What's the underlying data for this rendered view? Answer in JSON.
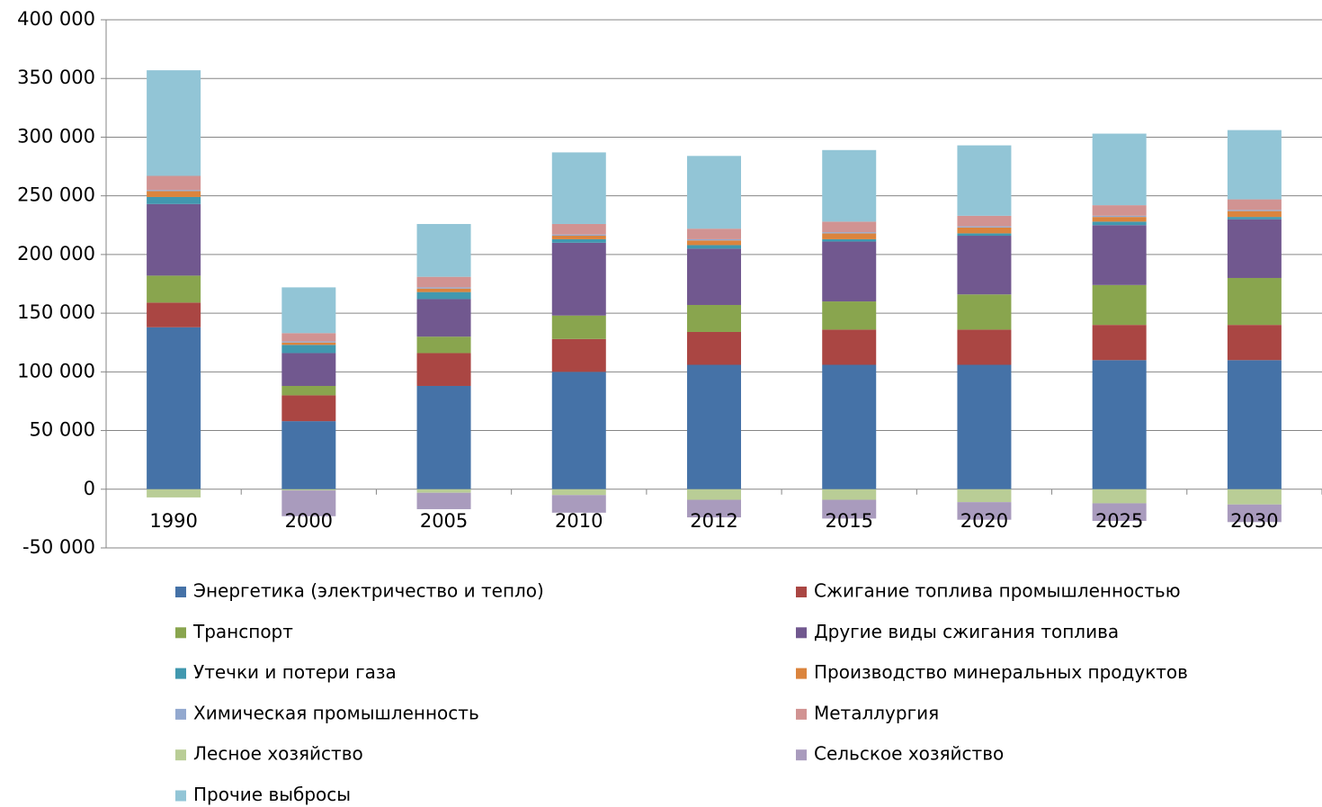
{
  "chart_data": {
    "type": "stacked_bar",
    "categories": [
      "1990",
      "2000",
      "2005",
      "2010",
      "2012",
      "2015",
      "2020",
      "2025",
      "2030"
    ],
    "series": [
      {
        "name": "Энергетика (электричество и тепло)",
        "color": "#4572a7",
        "values": [
          138000,
          58000,
          88000,
          100000,
          106000,
          106000,
          106000,
          110000,
          110000
        ]
      },
      {
        "name": "Сжигание топлива промышленностью",
        "color": "#aa4643",
        "values": [
          21000,
          22000,
          28000,
          28000,
          28000,
          30000,
          30000,
          30000,
          30000
        ]
      },
      {
        "name": "Транспорт",
        "color": "#89a54e",
        "values": [
          23000,
          8000,
          14000,
          20000,
          23000,
          24000,
          30000,
          34000,
          40000
        ]
      },
      {
        "name": "Другие виды сжигания топлива",
        "color": "#71588f",
        "values": [
          61000,
          28000,
          32000,
          62000,
          48000,
          51000,
          50000,
          51000,
          50000
        ]
      },
      {
        "name": "Утечки и потери газа",
        "color": "#4198af",
        "values": [
          6000,
          7000,
          6000,
          3000,
          3000,
          2000,
          2000,
          3000,
          2000
        ]
      },
      {
        "name": "Производство минеральных продуктов",
        "color": "#db843d",
        "values": [
          5000,
          2000,
          3000,
          3000,
          4000,
          5000,
          5000,
          4000,
          5000
        ]
      },
      {
        "name": "Химическая промышленность",
        "color": "#93a9cf",
        "values": [
          1000,
          1000,
          1000,
          1000,
          1000,
          1000,
          1000,
          1000,
          1000
        ]
      },
      {
        "name": "Металлургия",
        "color": "#d19392",
        "values": [
          12000,
          7000,
          9000,
          9000,
          9000,
          9000,
          9000,
          9000,
          9000
        ]
      },
      {
        "name": "Лесное хозяйство",
        "color": "#b9cd96",
        "values": [
          -7000,
          -1000,
          -3000,
          -5000,
          -9000,
          -9000,
          -11000,
          -12000,
          -13000
        ]
      },
      {
        "name": "Сельское хозяйство",
        "color": "#a99bbd",
        "values": [
          0,
          -22000,
          -14000,
          -15000,
          -15000,
          -16000,
          -15000,
          -15000,
          -15000
        ]
      },
      {
        "name": "Прочие выбросы",
        "color": "#92c5d6",
        "values": [
          90000,
          39000,
          45000,
          61000,
          62000,
          61000,
          60000,
          61000,
          59000
        ]
      }
    ],
    "ylim": [
      -50000,
      400000
    ],
    "yticks": [
      {
        "value": -50000,
        "label": "-50 000"
      },
      0,
      {
        "value": 50000,
        "label": "50 000"
      },
      {
        "value": 100000,
        "label": "100 000"
      },
      {
        "value": 150000,
        "label": "150 000"
      },
      {
        "value": 200000,
        "label": "200 000"
      },
      {
        "value": 250000,
        "label": "250 000"
      },
      {
        "value": 300000,
        "label": "300 000"
      },
      {
        "value": 350000,
        "label": "350 000"
      },
      {
        "value": 400000,
        "label": "400 000"
      }
    ],
    "grid": true
  }
}
